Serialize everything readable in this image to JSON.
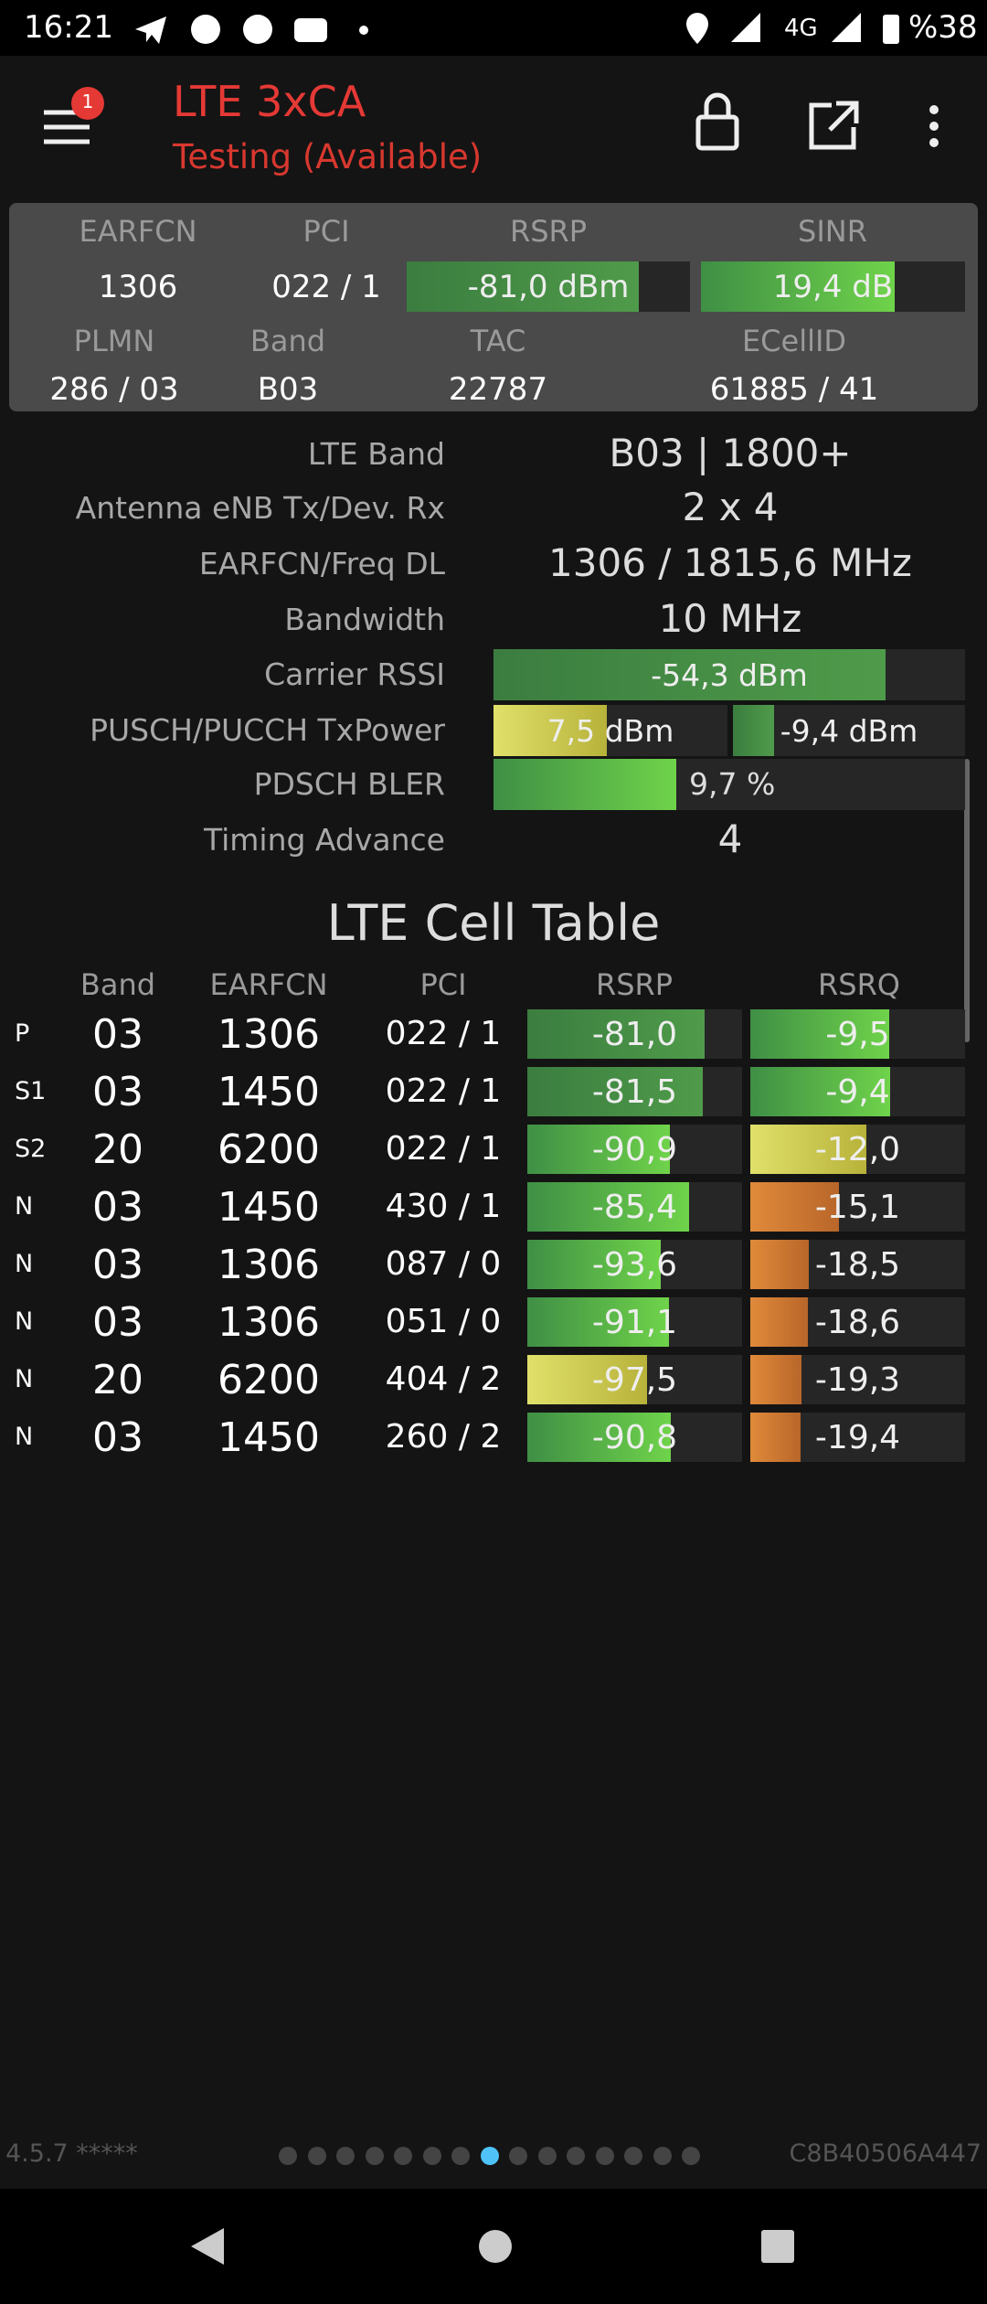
{
  "status_bar": {
    "time": "16:21",
    "network": "4G",
    "battery": "%38"
  },
  "header": {
    "badge": "1",
    "title": "LTE 3xCA",
    "subtitle": "Testing (Available)"
  },
  "summary": {
    "labels_1": [
      "EARFCN",
      "PCI",
      "RSRP",
      "SINR"
    ],
    "values_1": [
      "1306",
      "022 / 1",
      "-81,0 dBm",
      "19,4 dB"
    ],
    "labels_2": [
      "PLMN",
      "Band",
      "TAC",
      "ECellID"
    ],
    "values_2": [
      "286 / 03",
      "B03",
      "22787",
      "61885 / 41"
    ]
  },
  "details": [
    {
      "label": "LTE Band",
      "value": "B03 | 1800+"
    },
    {
      "label": "Antenna eNB Tx/Dev. Rx",
      "value": "2 x 4"
    },
    {
      "label": "EARFCN/Freq DL",
      "value": "1306 / 1815,6 MHz"
    },
    {
      "label": "Bandwidth",
      "value": "10 MHz"
    },
    {
      "label": "Carrier RSSI",
      "value": "-54,3 dBm"
    },
    {
      "label": "PUSCH/PUCCH TxPower",
      "values": [
        "7,5 dBm",
        "-9,4 dBm"
      ]
    },
    {
      "label": "PDSCH BLER",
      "value": "9,7 %"
    },
    {
      "label": "Timing Advance",
      "value": "4"
    }
  ],
  "cell_table": {
    "title": "LTE Cell Table",
    "columns": [
      "Band",
      "EARFCN",
      "PCI",
      "RSRP",
      "RSRQ"
    ],
    "rows": [
      [
        "P",
        "03",
        "1306",
        "022 / 1",
        "-81,0",
        "-9,5"
      ],
      [
        "S1",
        "03",
        "1450",
        "022 / 1",
        "-81,5",
        "-9,4"
      ],
      [
        "S2",
        "20",
        "6200",
        "022 / 1",
        "-90,9",
        "-12,0"
      ],
      [
        "N",
        "03",
        "1450",
        "430 / 1",
        "-85,4",
        "-15,1"
      ],
      [
        "N",
        "03",
        "1306",
        "087 / 0",
        "-93,6",
        "-18,5"
      ],
      [
        "N",
        "03",
        "1306",
        "051 / 0",
        "-91,1",
        "-18,6"
      ],
      [
        "N",
        "20",
        "6200",
        "404 / 2",
        "-97,5",
        "-19,3"
      ],
      [
        "N",
        "03",
        "1450",
        "260 / 2",
        "-90,8",
        "-19,4"
      ]
    ]
  },
  "footer": {
    "version": "4.5.7 *****",
    "id": "C8B40506A447"
  }
}
